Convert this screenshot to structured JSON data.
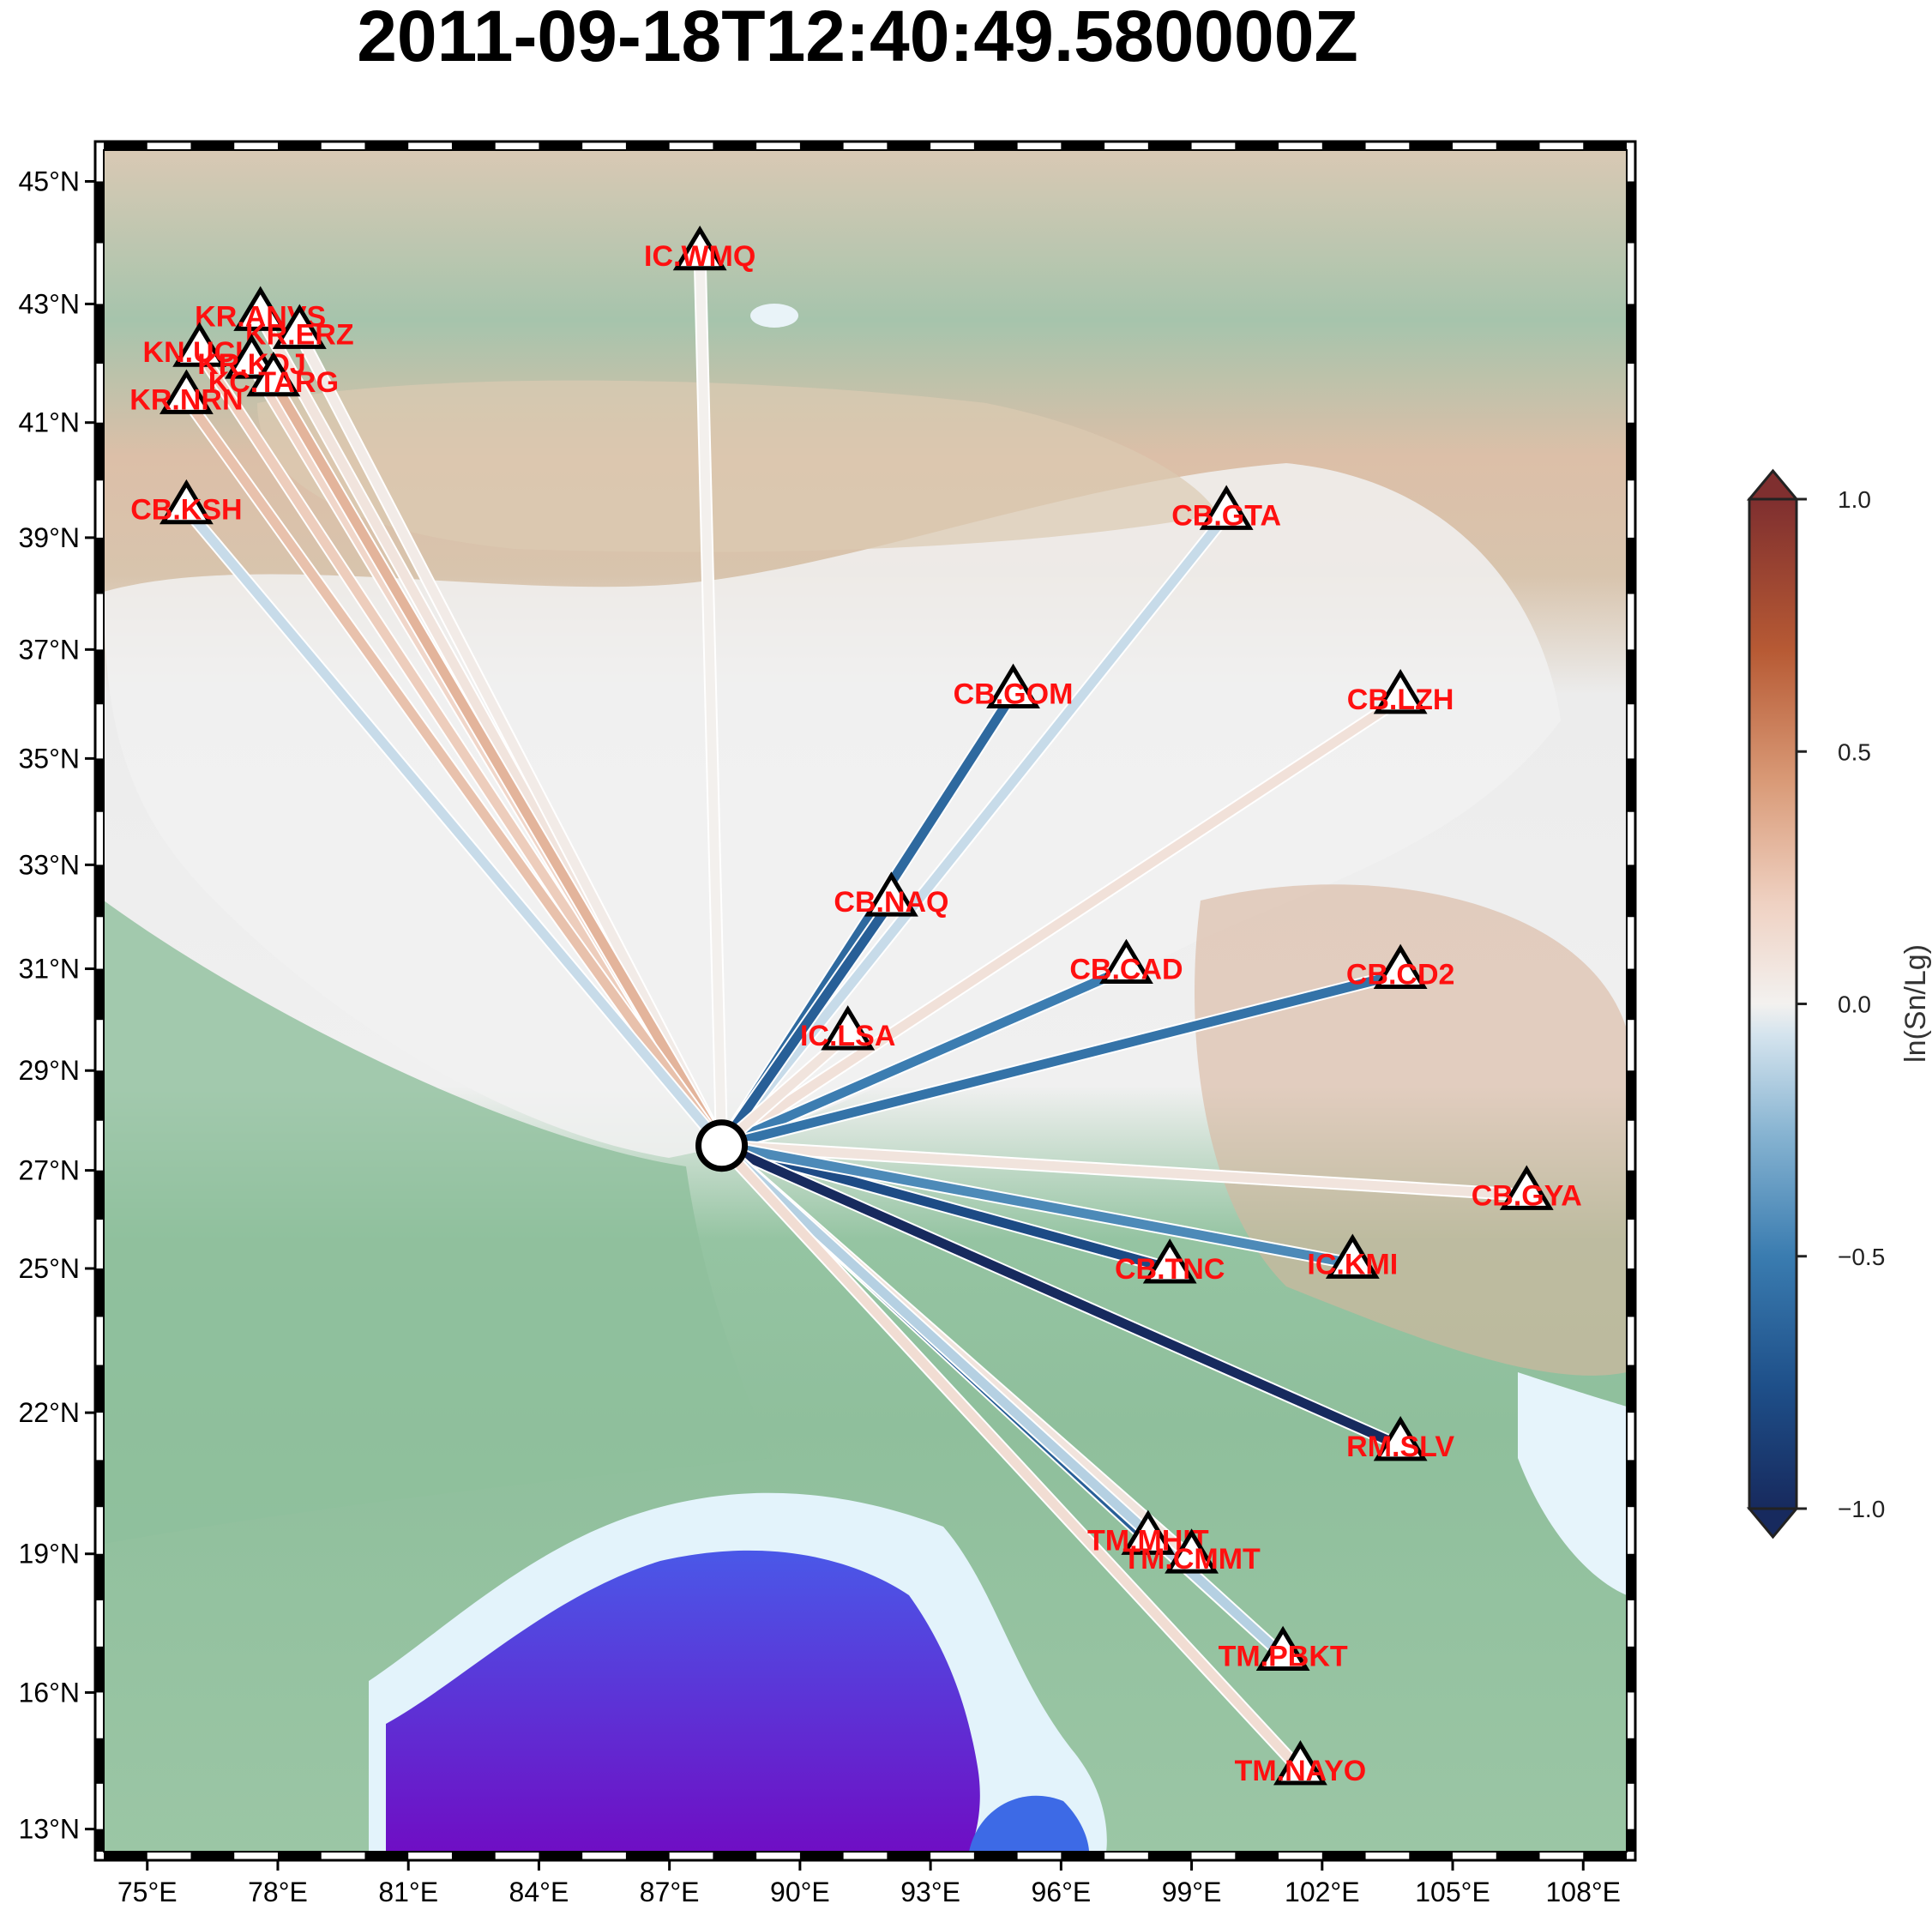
{
  "title": "2011-09-18T12:40:49.580000Z",
  "map": {
    "lon_range": [
      74,
      109
    ],
    "lat_range": [
      12.5,
      45.5
    ],
    "lon_ticks": [
      "75°E",
      "78°E",
      "81°E",
      "84°E",
      "87°E",
      "90°E",
      "93°E",
      "96°E",
      "99°E",
      "102°E",
      "105°E",
      "108°E"
    ],
    "lat_ticks": [
      "13°N",
      "16°N",
      "19°N",
      "22°N",
      "25°N",
      "27°N",
      "29°N",
      "31°N",
      "33°N",
      "35°N",
      "37°N",
      "39°N",
      "41°N",
      "43°N",
      "45°N"
    ],
    "colors": {
      "land_low": "#8fbf9c",
      "land_mid": "#d9b9a3",
      "plateau": "#e9e9e9",
      "sea_shallow": "#e6f4fb",
      "sea_deep": "#6a13c8"
    }
  },
  "event": {
    "lon": 88.2,
    "lat": 27.5
  },
  "stations": [
    {
      "label": "IC.WMQ",
      "lon": 87.7,
      "lat": 43.8,
      "value": 0.12
    },
    {
      "label": "KR.ANVS",
      "lon": 77.6,
      "lat": 42.8,
      "value": 0.2
    },
    {
      "label": "KR.ERZ",
      "lon": 78.5,
      "lat": 42.5,
      "value": 0.15
    },
    {
      "label": "KN.UCH",
      "lon": 76.2,
      "lat": 42.2,
      "value": 0.35
    },
    {
      "label": "KR.KDJ",
      "lon": 77.4,
      "lat": 42.0,
      "value": 0.3
    },
    {
      "label": "KC.TARG",
      "lon": 77.9,
      "lat": 41.7,
      "value": 0.45
    },
    {
      "label": "KR.NRN",
      "lon": 75.9,
      "lat": 41.4,
      "value": 0.4
    },
    {
      "label": "CB.KSH",
      "lon": 75.9,
      "lat": 39.5,
      "value": -0.15
    },
    {
      "label": "CB.GTA",
      "lon": 99.8,
      "lat": 39.4,
      "value": -0.15
    },
    {
      "label": "CB.GOM",
      "lon": 94.9,
      "lat": 36.2,
      "value": -0.65
    },
    {
      "label": "CB.LZH",
      "lon": 103.8,
      "lat": 36.1,
      "value": 0.22
    },
    {
      "label": "CB.NAQ",
      "lon": 92.1,
      "lat": 32.3,
      "value": -0.7
    },
    {
      "label": "CB.CAD",
      "lon": 97.5,
      "lat": 31.0,
      "value": -0.55
    },
    {
      "label": "CB.CD2",
      "lon": 103.8,
      "lat": 30.9,
      "value": -0.6
    },
    {
      "label": "IC.LSA",
      "lon": 91.1,
      "lat": 29.7,
      "value": 0.2
    },
    {
      "label": "CB.GYA",
      "lon": 106.7,
      "lat": 26.5,
      "value": 0.2
    },
    {
      "label": "CB.TNC",
      "lon": 98.5,
      "lat": 25.0,
      "value": -0.8
    },
    {
      "label": "IC.KMI",
      "lon": 102.7,
      "lat": 25.1,
      "value": -0.5
    },
    {
      "label": "RM.SLV",
      "lon": 103.8,
      "lat": 21.3,
      "value": -1.05
    },
    {
      "label": "TM.MHIT",
      "lon": 98.0,
      "lat": 19.3,
      "value": -0.7
    },
    {
      "label": "TM.CMMT",
      "lon": 99.0,
      "lat": 18.9,
      "value": 0.2
    },
    {
      "label": "TM.PBKT",
      "lon": 101.1,
      "lat": 16.8,
      "value": -0.2
    },
    {
      "label": "TM.NAYO",
      "lon": 101.5,
      "lat": 14.3,
      "value": 0.25
    }
  ],
  "colorbar": {
    "label": "ln(Sn/Lg)",
    "min": -1.0,
    "max": 1.0,
    "tick_labels": [
      "1.0",
      "0.5",
      "0.0",
      "−0.5",
      "−1.0"
    ],
    "tick_values": [
      1.0,
      0.5,
      0.0,
      -0.5,
      -1.0
    ],
    "colors": [
      "#172a5e",
      "#1e4f89",
      "#3a7cb0",
      "#86b3d1",
      "#d5e4ee",
      "#f3f1ef",
      "#efd1c2",
      "#d99a77",
      "#b75a34",
      "#7f2f2f"
    ]
  }
}
